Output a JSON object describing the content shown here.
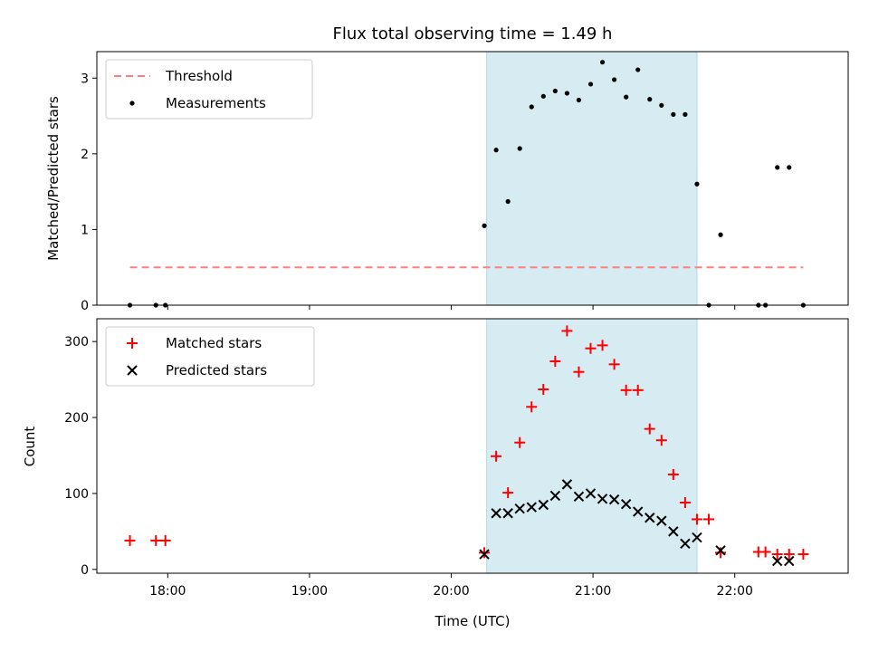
{
  "chart_data": {
    "title": "Flux total observing time = 1.49 h",
    "xlabel": "Time (UTC)",
    "x_ticks": [
      "18:00",
      "19:00",
      "20:00",
      "21:00",
      "22:00"
    ],
    "shaded_interval": {
      "start": "20:15",
      "end": "21:44",
      "color": "#add8e6"
    },
    "panels": [
      {
        "type": "scatter",
        "ylabel": "Matched/Predicted stars",
        "ylim": [
          0,
          3.35
        ],
        "y_ticks": [
          "0",
          "1",
          "2",
          "3"
        ],
        "legend": {
          "position": "top-left"
        },
        "series": [
          {
            "name": "Threshold",
            "kind": "dashed-line",
            "color": "#ff7f7f",
            "points": [
              {
                "x": "17:44",
                "y": 0.5
              },
              {
                "x": "22:29",
                "y": 0.5
              }
            ]
          },
          {
            "name": "Measurements",
            "kind": "dot",
            "color": "#000000",
            "points": [
              {
                "x": "17:44",
                "y": 0
              },
              {
                "x": "17:55",
                "y": 0
              },
              {
                "x": "17:59",
                "y": 0
              },
              {
                "x": "20:14",
                "y": 1.05
              },
              {
                "x": "20:19",
                "y": 2.05
              },
              {
                "x": "20:24",
                "y": 1.37
              },
              {
                "x": "20:29",
                "y": 2.07
              },
              {
                "x": "20:34",
                "y": 2.62
              },
              {
                "x": "20:39",
                "y": 2.76
              },
              {
                "x": "20:44",
                "y": 2.83
              },
              {
                "x": "20:49",
                "y": 2.8
              },
              {
                "x": "20:54",
                "y": 2.71
              },
              {
                "x": "20:59",
                "y": 2.92
              },
              {
                "x": "21:04",
                "y": 3.21
              },
              {
                "x": "21:09",
                "y": 2.98
              },
              {
                "x": "21:14",
                "y": 2.75
              },
              {
                "x": "21:19",
                "y": 3.11
              },
              {
                "x": "21:24",
                "y": 2.72
              },
              {
                "x": "21:29",
                "y": 2.64
              },
              {
                "x": "21:34",
                "y": 2.52
              },
              {
                "x": "21:39",
                "y": 2.52
              },
              {
                "x": "21:44",
                "y": 1.6
              },
              {
                "x": "21:49",
                "y": 0
              },
              {
                "x": "21:54",
                "y": 0.93
              },
              {
                "x": "22:10",
                "y": 0
              },
              {
                "x": "22:13",
                "y": 0
              },
              {
                "x": "22:18",
                "y": 1.82
              },
              {
                "x": "22:23",
                "y": 1.82
              },
              {
                "x": "22:29",
                "y": 0
              }
            ]
          }
        ]
      },
      {
        "type": "scatter",
        "ylabel": "Count",
        "ylim": [
          -5,
          330
        ],
        "y_ticks": [
          "0",
          "100",
          "200",
          "300"
        ],
        "legend": {
          "position": "top-left"
        },
        "series": [
          {
            "name": "Matched stars",
            "kind": "plus",
            "color": "#ff0000",
            "points": [
              {
                "x": "17:44",
                "y": 38
              },
              {
                "x": "17:55",
                "y": 38
              },
              {
                "x": "17:59",
                "y": 38
              },
              {
                "x": "20:14",
                "y": 22
              },
              {
                "x": "20:19",
                "y": 149
              },
              {
                "x": "20:24",
                "y": 101
              },
              {
                "x": "20:29",
                "y": 167
              },
              {
                "x": "20:34",
                "y": 214
              },
              {
                "x": "20:39",
                "y": 237
              },
              {
                "x": "20:44",
                "y": 274
              },
              {
                "x": "20:49",
                "y": 314
              },
              {
                "x": "20:54",
                "y": 260
              },
              {
                "x": "20:59",
                "y": 291
              },
              {
                "x": "21:04",
                "y": 295
              },
              {
                "x": "21:09",
                "y": 270
              },
              {
                "x": "21:14",
                "y": 236
              },
              {
                "x": "21:19",
                "y": 236
              },
              {
                "x": "21:24",
                "y": 185
              },
              {
                "x": "21:29",
                "y": 170
              },
              {
                "x": "21:34",
                "y": 125
              },
              {
                "x": "21:39",
                "y": 88
              },
              {
                "x": "21:44",
                "y": 66
              },
              {
                "x": "21:49",
                "y": 66
              },
              {
                "x": "21:54",
                "y": 22
              },
              {
                "x": "22:10",
                "y": 23
              },
              {
                "x": "22:13",
                "y": 23
              },
              {
                "x": "22:18",
                "y": 20
              },
              {
                "x": "22:23",
                "y": 20
              },
              {
                "x": "22:29",
                "y": 20
              }
            ]
          },
          {
            "name": "Predicted stars",
            "kind": "x",
            "color": "#000000",
            "points": [
              {
                "x": "20:14",
                "y": 20
              },
              {
                "x": "20:19",
                "y": 74
              },
              {
                "x": "20:24",
                "y": 74
              },
              {
                "x": "20:29",
                "y": 80
              },
              {
                "x": "20:34",
                "y": 82
              },
              {
                "x": "20:39",
                "y": 85
              },
              {
                "x": "20:44",
                "y": 97
              },
              {
                "x": "20:49",
                "y": 112
              },
              {
                "x": "20:54",
                "y": 96
              },
              {
                "x": "20:59",
                "y": 100
              },
              {
                "x": "21:04",
                "y": 93
              },
              {
                "x": "21:09",
                "y": 92
              },
              {
                "x": "21:14",
                "y": 86
              },
              {
                "x": "21:19",
                "y": 76
              },
              {
                "x": "21:24",
                "y": 68
              },
              {
                "x": "21:29",
                "y": 64
              },
              {
                "x": "21:34",
                "y": 50
              },
              {
                "x": "21:39",
                "y": 34
              },
              {
                "x": "21:44",
                "y": 42
              },
              {
                "x": "21:54",
                "y": 25
              },
              {
                "x": "22:18",
                "y": 11
              },
              {
                "x": "22:23",
                "y": 11
              }
            ]
          }
        ]
      }
    ]
  }
}
